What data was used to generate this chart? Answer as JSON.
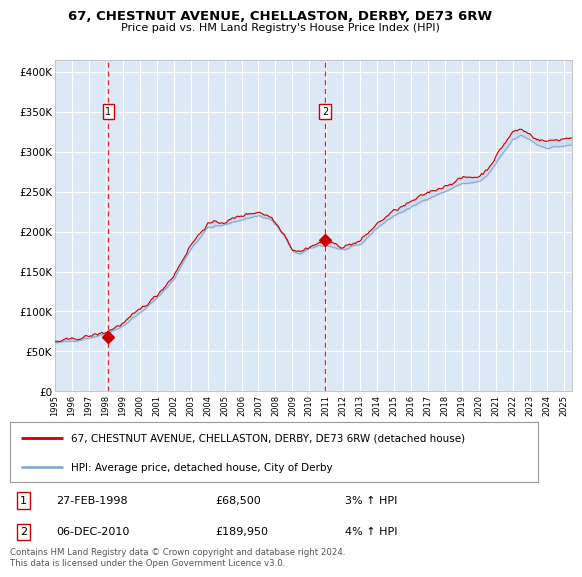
{
  "title1": "67, CHESTNUT AVENUE, CHELLASTON, DERBY, DE73 6RW",
  "title2": "Price paid vs. HM Land Registry's House Price Index (HPI)",
  "ylabel_ticks": [
    "£0",
    "£50K",
    "£100K",
    "£150K",
    "£200K",
    "£250K",
    "£300K",
    "£350K",
    "£400K"
  ],
  "ytick_values": [
    0,
    50000,
    100000,
    150000,
    200000,
    250000,
    300000,
    350000,
    400000
  ],
  "ylim": [
    0,
    415000
  ],
  "xlim_start": 1995.0,
  "xlim_end": 2025.5,
  "plot_bg": "#dce8f5",
  "grid_color": "#ffffff",
  "line1_color": "#cc0000",
  "line2_color": "#88aad0",
  "sale1_x": 1998.15,
  "sale1_y": 68500,
  "sale2_x": 2010.92,
  "sale2_y": 189950,
  "legend_label1": "67, CHESTNUT AVENUE, CHELLASTON, DERBY, DE73 6RW (detached house)",
  "legend_label2": "HPI: Average price, detached house, City of Derby",
  "table_rows": [
    {
      "num": "1",
      "date": "27-FEB-1998",
      "price": "£68,500",
      "hpi": "3% ↑ HPI"
    },
    {
      "num": "2",
      "date": "06-DEC-2010",
      "price": "£189,950",
      "hpi": "4% ↑ HPI"
    }
  ],
  "footnote": "Contains HM Land Registry data © Crown copyright and database right 2024.\nThis data is licensed under the Open Government Licence v3.0."
}
